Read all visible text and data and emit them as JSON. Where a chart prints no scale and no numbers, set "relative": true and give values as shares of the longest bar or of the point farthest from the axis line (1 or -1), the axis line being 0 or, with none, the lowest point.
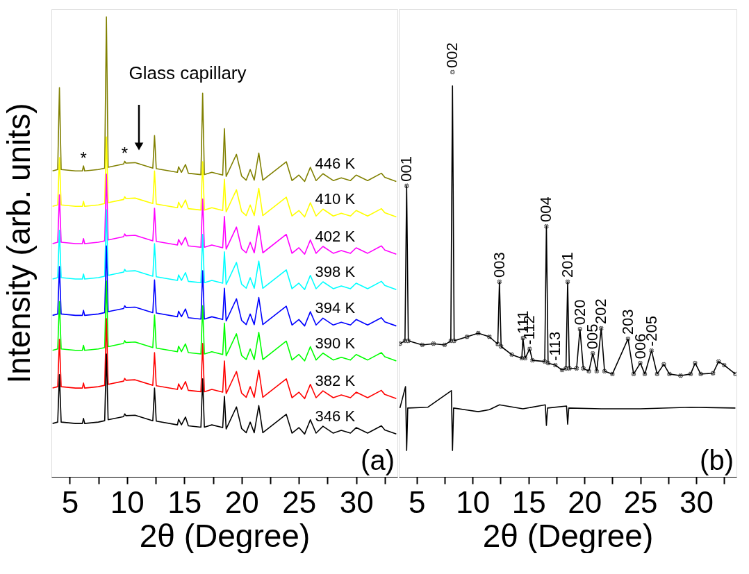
{
  "chart_data": [
    {
      "type": "line",
      "relative": true,
      "xlabel": "2θ (Degree)",
      "ylabel": "Intensity (arb. units)",
      "tick_labels": "x",
      "xlim": [
        3.4,
        33.6
      ],
      "xticks": [
        5,
        {
          "value": 7.5,
          "label": null
        },
        10,
        {
          "value": 12.5,
          "label": null
        },
        15,
        {
          "value": 17.5,
          "label": null
        },
        20,
        {
          "value": 22.5,
          "label": null
        },
        25,
        {
          "value": 27.5,
          "label": null
        },
        30,
        {
          "value": 32.5,
          "label": null
        }
      ],
      "x": [
        3.5,
        3.95,
        4.1,
        4.25,
        5.5,
        6.1,
        6.2,
        6.3,
        7.5,
        8.05,
        8.2,
        8.35,
        9.7,
        9.8,
        9.9,
        10.7,
        12.25,
        12.4,
        12.55,
        14.4,
        14.5,
        14.75,
        15.1,
        15.35,
        16.45,
        16.6,
        16.75,
        17.4,
        18.35,
        18.5,
        18.65,
        19.55,
        20.0,
        20.4,
        20.75,
        21.1,
        21.5,
        21.85,
        23.9,
        24.4,
        25.0,
        25.5,
        26.0,
        26.5,
        27.1,
        28.0,
        28.7,
        29.5,
        30.0,
        31.0,
        32.2,
        32.5,
        33.5
      ],
      "series": [
        {
          "name": "446 K",
          "color": "#808000",
          "values": [
            0.665,
            0.668,
            0.846,
            0.668,
            0.665,
            0.665,
            0.676,
            0.665,
            0.668,
            0.671,
            1.0,
            0.673,
            0.68,
            0.686,
            0.682,
            0.683,
            0.671,
            0.742,
            0.67,
            0.662,
            0.674,
            0.662,
            0.679,
            0.66,
            0.657,
            0.834,
            0.657,
            0.662,
            0.656,
            0.757,
            0.653,
            0.701,
            0.654,
            0.645,
            0.668,
            0.645,
            0.704,
            0.645,
            0.685,
            0.644,
            0.656,
            0.642,
            0.673,
            0.644,
            0.659,
            0.644,
            0.65,
            0.644,
            0.656,
            0.644,
            0.66,
            0.651,
            0.642
          ]
        },
        {
          "name": "410 K",
          "color": "#ffff00",
          "values": [
            0.588,
            0.591,
            0.694,
            0.591,
            0.588,
            0.588,
            0.599,
            0.588,
            0.591,
            0.594,
            0.739,
            0.596,
            0.603,
            0.609,
            0.605,
            0.606,
            0.594,
            0.665,
            0.593,
            0.585,
            0.597,
            0.585,
            0.602,
            0.583,
            0.58,
            0.685,
            0.58,
            0.585,
            0.579,
            0.647,
            0.576,
            0.624,
            0.577,
            0.568,
            0.591,
            0.568,
            0.627,
            0.568,
            0.608,
            0.567,
            0.579,
            0.565,
            0.596,
            0.567,
            0.582,
            0.567,
            0.573,
            0.567,
            0.579,
            0.567,
            0.583,
            0.574,
            0.565
          ]
        },
        {
          "name": "402 K",
          "color": "#ff00ff",
          "values": [
            0.507,
            0.51,
            0.613,
            0.51,
            0.507,
            0.507,
            0.518,
            0.507,
            0.51,
            0.513,
            0.658,
            0.515,
            0.522,
            0.528,
            0.524,
            0.525,
            0.513,
            0.584,
            0.512,
            0.504,
            0.516,
            0.504,
            0.521,
            0.502,
            0.499,
            0.604,
            0.499,
            0.504,
            0.498,
            0.566,
            0.495,
            0.543,
            0.496,
            0.487,
            0.51,
            0.487,
            0.546,
            0.487,
            0.527,
            0.486,
            0.498,
            0.484,
            0.515,
            0.486,
            0.501,
            0.486,
            0.492,
            0.486,
            0.498,
            0.486,
            0.502,
            0.493,
            0.484
          ]
        },
        {
          "name": "398 K",
          "color": "#00ffff",
          "values": [
            0.43,
            0.433,
            0.536,
            0.433,
            0.43,
            0.43,
            0.441,
            0.43,
            0.433,
            0.436,
            0.581,
            0.438,
            0.445,
            0.451,
            0.447,
            0.448,
            0.436,
            0.507,
            0.435,
            0.427,
            0.439,
            0.427,
            0.444,
            0.425,
            0.422,
            0.527,
            0.422,
            0.427,
            0.421,
            0.489,
            0.418,
            0.466,
            0.419,
            0.41,
            0.433,
            0.41,
            0.469,
            0.41,
            0.45,
            0.409,
            0.421,
            0.407,
            0.438,
            0.409,
            0.424,
            0.409,
            0.415,
            0.409,
            0.421,
            0.409,
            0.425,
            0.416,
            0.407
          ]
        },
        {
          "name": "394 K",
          "color": "#0000ff",
          "values": [
            0.351,
            0.354,
            0.457,
            0.354,
            0.351,
            0.351,
            0.362,
            0.351,
            0.354,
            0.357,
            0.502,
            0.359,
            0.366,
            0.372,
            0.368,
            0.369,
            0.357,
            0.428,
            0.356,
            0.348,
            0.36,
            0.348,
            0.365,
            0.346,
            0.343,
            0.448,
            0.343,
            0.348,
            0.342,
            0.41,
            0.339,
            0.387,
            0.34,
            0.331,
            0.354,
            0.331,
            0.39,
            0.331,
            0.371,
            0.33,
            0.342,
            0.328,
            0.359,
            0.33,
            0.345,
            0.33,
            0.336,
            0.33,
            0.342,
            0.33,
            0.346,
            0.337,
            0.328
          ]
        },
        {
          "name": "390 K",
          "color": "#00ff00",
          "values": [
            0.275,
            0.278,
            0.381,
            0.278,
            0.275,
            0.275,
            0.286,
            0.275,
            0.278,
            0.281,
            0.426,
            0.283,
            0.29,
            0.296,
            0.292,
            0.293,
            0.281,
            0.352,
            0.28,
            0.272,
            0.284,
            0.272,
            0.289,
            0.27,
            0.267,
            0.372,
            0.267,
            0.272,
            0.266,
            0.334,
            0.263,
            0.311,
            0.264,
            0.255,
            0.278,
            0.255,
            0.314,
            0.255,
            0.295,
            0.254,
            0.266,
            0.252,
            0.283,
            0.254,
            0.269,
            0.254,
            0.26,
            0.254,
            0.266,
            0.254,
            0.27,
            0.261,
            0.252
          ]
        },
        {
          "name": "382 K",
          "color": "#ff0000",
          "values": [
            0.193,
            0.196,
            0.299,
            0.196,
            0.193,
            0.193,
            0.204,
            0.193,
            0.196,
            0.199,
            0.344,
            0.201,
            0.208,
            0.214,
            0.21,
            0.211,
            0.199,
            0.27,
            0.198,
            0.19,
            0.202,
            0.19,
            0.207,
            0.188,
            0.185,
            0.29,
            0.185,
            0.19,
            0.184,
            0.252,
            0.181,
            0.229,
            0.182,
            0.173,
            0.196,
            0.173,
            0.232,
            0.173,
            0.213,
            0.172,
            0.184,
            0.17,
            0.201,
            0.172,
            0.187,
            0.172,
            0.178,
            0.172,
            0.184,
            0.172,
            0.188,
            0.179,
            0.17
          ]
        },
        {
          "name": "346 K",
          "color": "#000000",
          "values": [
            0.116,
            0.119,
            0.222,
            0.119,
            0.116,
            0.116,
            0.127,
            0.116,
            0.119,
            0.122,
            0.267,
            0.124,
            0.131,
            0.137,
            0.133,
            0.134,
            0.122,
            0.193,
            0.121,
            0.113,
            0.125,
            0.113,
            0.13,
            0.111,
            0.108,
            0.213,
            0.108,
            0.113,
            0.107,
            0.175,
            0.104,
            0.152,
            0.105,
            0.096,
            0.119,
            0.096,
            0.155,
            0.096,
            0.136,
            0.095,
            0.107,
            0.093,
            0.124,
            0.095,
            0.11,
            0.095,
            0.101,
            0.095,
            0.107,
            0.095,
            0.111,
            0.102,
            0.093
          ]
        }
      ],
      "annotations": [
        "Glass capillary",
        {
          "text": "*",
          "x": 6.2,
          "y": 0.676
        },
        {
          "text": "*",
          "x": 9.8,
          "y": 0.686
        },
        "(a)"
      ]
    },
    {
      "type": "line",
      "relative": true,
      "xlabel": "2θ (Degree)",
      "tick_labels": "x",
      "xlim": [
        3.4,
        33.6
      ],
      "xticks": [
        5,
        {
          "value": 7.5,
          "label": null
        },
        10,
        {
          "value": 12.5,
          "label": null
        },
        15,
        {
          "value": 17.5,
          "label": null
        },
        20,
        {
          "value": 22.5,
          "label": null
        },
        25,
        {
          "value": 27.5,
          "label": null
        },
        30,
        {
          "value": 32.5,
          "label": null
        }
      ],
      "series": [
        {
          "type": "scatter",
          "marker": "cross",
          "color": "#000000",
          "x": [
            3.5,
            3.95,
            4.1,
            4.25,
            5.5,
            6.5,
            7.5,
            8.05,
            8.2,
            8.35,
            9.5,
            10.5,
            11.5,
            12.25,
            12.4,
            12.55,
            13.5,
            14.4,
            14.5,
            14.7,
            15.1,
            15.35,
            16.45,
            16.6,
            16.75,
            17.4,
            18.0,
            18.35,
            18.5,
            18.65,
            19.3,
            19.6,
            19.9,
            20.4,
            20.75,
            21.1,
            21.5,
            21.8,
            22.5,
            23.9,
            24.4,
            25.0,
            25.4,
            26.0,
            26.5,
            27.1,
            27.6,
            28.6,
            29.5,
            29.9,
            30.4,
            31.5,
            32.0,
            32.5,
            33.5
          ],
          "values": [
            0.329,
            0.336,
            0.719,
            0.336,
            0.326,
            0.329,
            0.326,
            0.336,
            1.0,
            0.336,
            0.346,
            0.355,
            0.346,
            0.328,
            0.482,
            0.322,
            0.302,
            0.293,
            0.343,
            0.293,
            0.316,
            0.288,
            0.285,
            0.619,
            0.281,
            0.276,
            0.264,
            0.268,
            0.482,
            0.268,
            0.268,
            0.365,
            0.268,
            0.261,
            0.305,
            0.261,
            0.367,
            0.261,
            0.254,
            0.341,
            0.254,
            0.281,
            0.254,
            0.312,
            0.254,
            0.278,
            0.254,
            0.25,
            0.254,
            0.281,
            0.254,
            0.256,
            0.285,
            0.276,
            0.254
          ]
        },
        {
          "type": "line",
          "color": "#000000",
          "x": [
            3.5,
            3.95,
            4.1,
            4.25,
            5.5,
            6.5,
            7.5,
            8.05,
            8.2,
            8.35,
            9.5,
            10.5,
            11.5,
            12.25,
            12.4,
            12.55,
            13.5,
            14.4,
            14.5,
            14.7,
            15.1,
            15.35,
            16.45,
            16.6,
            16.75,
            17.4,
            18.0,
            18.35,
            18.5,
            18.65,
            19.3,
            19.6,
            19.9,
            20.4,
            20.75,
            21.1,
            21.5,
            21.8,
            22.5,
            23.9,
            24.4,
            25.0,
            25.4,
            26.0,
            26.5,
            27.1,
            27.6,
            28.6,
            29.5,
            29.9,
            30.4,
            31.5,
            32.0,
            32.5,
            33.5
          ],
          "values": [
            0.329,
            0.336,
            0.719,
            0.336,
            0.326,
            0.329,
            0.326,
            0.336,
            0.966,
            0.336,
            0.346,
            0.355,
            0.346,
            0.328,
            0.482,
            0.322,
            0.302,
            0.293,
            0.343,
            0.293,
            0.316,
            0.288,
            0.285,
            0.619,
            0.281,
            0.276,
            0.264,
            0.268,
            0.482,
            0.268,
            0.268,
            0.365,
            0.268,
            0.261,
            0.305,
            0.261,
            0.367,
            0.261,
            0.254,
            0.341,
            0.254,
            0.281,
            0.254,
            0.312,
            0.254,
            0.278,
            0.254,
            0.25,
            0.254,
            0.281,
            0.254,
            0.256,
            0.285,
            0.276,
            0.254
          ]
        },
        {
          "type": "line",
          "color": "#000000",
          "x": [
            3.5,
            4.0,
            4.1,
            4.2,
            6.0,
            8.1,
            8.2,
            8.3,
            9.5,
            10.5,
            11.5,
            12.4,
            14.5,
            16.5,
            16.6,
            16.7,
            18.4,
            18.5,
            18.6,
            21.5,
            25.0,
            29.5,
            33.5
          ],
          "values": [
            0.17,
            0.223,
            0.065,
            0.17,
            0.172,
            0.213,
            0.065,
            0.17,
            0.165,
            0.161,
            0.166,
            0.178,
            0.168,
            0.178,
            0.127,
            0.17,
            0.175,
            0.13,
            0.17,
            0.168,
            0.168,
            0.172,
            0.17
          ]
        }
      ],
      "annotations": [
        {
          "text": "001",
          "x": 4.1,
          "y": 0.719
        },
        {
          "text": "002",
          "x": 8.2,
          "y": 1.0
        },
        {
          "text": "003",
          "x": 12.4,
          "y": 0.482
        },
        {
          "text": "111",
          "x": 14.5,
          "y": 0.343
        },
        {
          "text": "-112",
          "x": 15.1,
          "y": 0.316
        },
        {
          "text": "004",
          "x": 16.6,
          "y": 0.619
        },
        {
          "text": "-113",
          "x": 17.4,
          "y": 0.276
        },
        {
          "text": "201",
          "x": 18.5,
          "y": 0.482
        },
        {
          "text": "020",
          "x": 19.6,
          "y": 0.365
        },
        {
          "text": "005",
          "x": 20.75,
          "y": 0.305
        },
        {
          "text": "202",
          "x": 21.5,
          "y": 0.367
        },
        {
          "text": "203",
          "x": 23.9,
          "y": 0.341
        },
        {
          "text": "006",
          "x": 25.0,
          "y": 0.281
        },
        {
          "text": "-205",
          "x": 26.0,
          "y": 0.312
        },
        "(b)"
      ]
    }
  ]
}
